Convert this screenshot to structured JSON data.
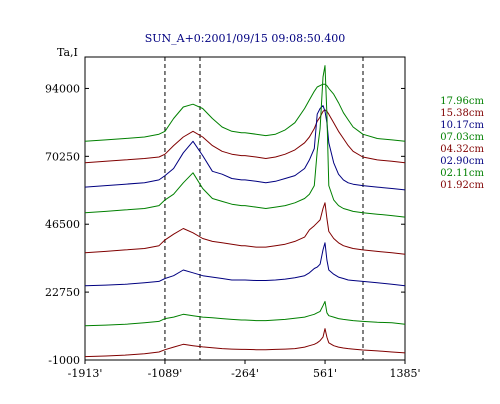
{
  "chart_data": {
    "type": "line",
    "title": "SUN_A+0:2001/09/15 09:08:50.400",
    "ylabel": "Ta,I",
    "xlabel": "",
    "xlim": [
      -1913,
      1385
    ],
    "ylim": [
      -1000,
      105000
    ],
    "x_ticks": [
      "-1913'",
      "-1089'",
      "-264'",
      "561'",
      "1385'"
    ],
    "x_tick_values": [
      -1913,
      -1089,
      -264,
      561,
      1385
    ],
    "y_ticks": [
      "94000",
      "70250",
      "46500",
      "22750",
      "-1000"
    ],
    "y_tick_values": [
      94000,
      70250,
      46500,
      22750,
      -1000
    ],
    "grid": false,
    "markers_x": [
      -1089,
      -264,
      1385
    ],
    "legend_position": "right",
    "x": [
      -1913,
      -1700,
      -1500,
      -1300,
      -1150,
      -1089,
      -1000,
      -900,
      -800,
      -700,
      -600,
      -500,
      -400,
      -300,
      -264,
      -150,
      -50,
      50,
      150,
      250,
      350,
      400,
      450,
      480,
      510,
      540,
      561,
      580,
      600,
      650,
      700,
      750,
      800,
      850,
      950,
      1100,
      1250,
      1385
    ],
    "series": [
      {
        "name": "17.96cm",
        "color": "#008000",
        "values": [
          75500,
          76000,
          76500,
          77000,
          78000,
          79000,
          83500,
          87500,
          88500,
          87000,
          83500,
          80500,
          79000,
          78500,
          78500,
          78000,
          77500,
          78000,
          79500,
          82000,
          87000,
          90000,
          93000,
          94500,
          95000,
          95500,
          95500,
          95000,
          94000,
          92000,
          89000,
          85500,
          83000,
          80500,
          78000,
          76500,
          76000,
          75500
        ]
      },
      {
        "name": "15.38cm",
        "color": "#800000",
        "values": [
          68000,
          68500,
          69000,
          69500,
          70000,
          71000,
          74000,
          77000,
          79000,
          77000,
          74000,
          72000,
          71000,
          70500,
          70500,
          70000,
          69500,
          70000,
          71000,
          72500,
          75000,
          77000,
          80000,
          82500,
          84000,
          86000,
          86500,
          86000,
          85000,
          82000,
          79000,
          76500,
          74000,
          72000,
          70000,
          69000,
          68500,
          68000
        ]
      },
      {
        "name": "10.17cm",
        "color": "#000080",
        "values": [
          59500,
          60000,
          60500,
          61000,
          62000,
          63500,
          66000,
          71500,
          75500,
          70500,
          65000,
          64000,
          62500,
          62000,
          62000,
          61500,
          61000,
          61500,
          62500,
          63500,
          66000,
          69000,
          73000,
          85000,
          87000,
          88000,
          86000,
          82000,
          75000,
          68000,
          64000,
          62000,
          61000,
          60500,
          60000,
          59500,
          59000,
          58500
        ]
      },
      {
        "name": "07.03cm",
        "color": "#008000",
        "values": [
          50500,
          51000,
          51500,
          52000,
          53000,
          55000,
          57000,
          61000,
          64500,
          59000,
          55500,
          54500,
          53500,
          53000,
          53000,
          52500,
          52000,
          52500,
          53000,
          54000,
          55500,
          57000,
          60000,
          72000,
          80000,
          98000,
          102000,
          85000,
          60000,
          55000,
          53000,
          52000,
          51500,
          51000,
          50500,
          50000,
          49500,
          49000
        ]
      },
      {
        "name": "04.32cm",
        "color": "#800000",
        "values": [
          36500,
          37000,
          37500,
          38000,
          39000,
          41000,
          43000,
          45000,
          43500,
          41500,
          40500,
          40000,
          39500,
          39000,
          39000,
          38500,
          38500,
          39000,
          39500,
          40500,
          42000,
          44500,
          46000,
          47000,
          48000,
          52000,
          54000,
          48500,
          44000,
          41500,
          40000,
          39000,
          38500,
          38000,
          37500,
          37000,
          36500,
          36000
        ]
      },
      {
        "name": "02.90cm",
        "color": "#000080",
        "values": [
          25000,
          25200,
          25500,
          26000,
          26500,
          27500,
          28500,
          30500,
          29500,
          28500,
          28000,
          27500,
          27000,
          27000,
          27000,
          26800,
          26800,
          27000,
          27300,
          27800,
          28500,
          29500,
          31000,
          31500,
          32500,
          37500,
          40000,
          34000,
          30500,
          29000,
          28000,
          27500,
          27000,
          26800,
          26500,
          26000,
          25500,
          25000
        ]
      },
      {
        "name": "02.11cm",
        "color": "#008000",
        "values": [
          11000,
          11200,
          11500,
          12000,
          12500,
          13500,
          14000,
          15000,
          14500,
          14000,
          13800,
          13500,
          13200,
          13000,
          13000,
          12800,
          12800,
          13000,
          13200,
          13600,
          14000,
          14500,
          15000,
          15500,
          16000,
          18000,
          19500,
          15500,
          14500,
          14000,
          13500,
          13200,
          13000,
          12800,
          12500,
          12200,
          12000,
          11500
        ]
      },
      {
        "name": "01.92cm",
        "color": "#800000",
        "values": [
          200,
          400,
          700,
          1200,
          1800,
          2600,
          3500,
          4500,
          4000,
          3600,
          3300,
          3000,
          2800,
          2700,
          2700,
          2600,
          2600,
          2700,
          2800,
          3000,
          3500,
          4000,
          4500,
          5000,
          5800,
          7000,
          10000,
          7000,
          5000,
          4000,
          3500,
          3200,
          3000,
          2800,
          2500,
          2200,
          1800,
          1500
        ]
      }
    ]
  }
}
